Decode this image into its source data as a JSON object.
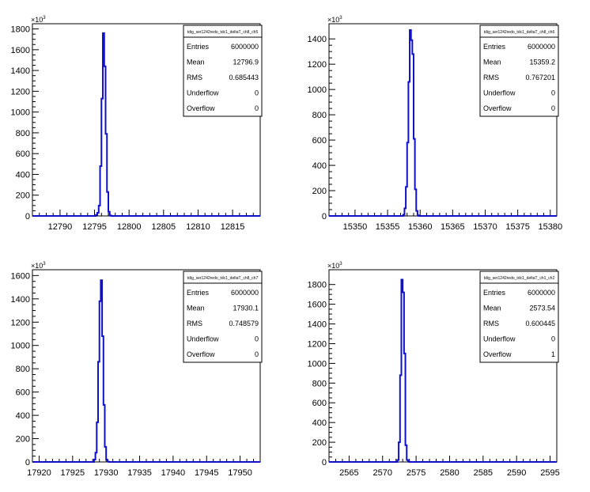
{
  "chart_data": [
    {
      "type": "histogram",
      "stats": {
        "title": "tdig_ser1242redo_tdc1_deltaT_ch8_ch5",
        "entries": "6000000",
        "mean": "12796.9",
        "rms": "0.685443",
        "underflow": "0",
        "overflow": "0"
      },
      "stat_labels": {
        "entries": "Entries",
        "mean": "Mean",
        "rms": "RMS",
        "underflow": "Underflow",
        "overflow": "Overflow"
      },
      "xlim": [
        12786,
        12819
      ],
      "xticks": [
        12790,
        12795,
        12800,
        12805,
        12810,
        12815
      ],
      "ylim": [
        0,
        1850
      ],
      "yticks": [
        0,
        200,
        400,
        600,
        800,
        1000,
        1200,
        1400,
        1600,
        1800
      ],
      "y_multiplier": {
        "base": "×10",
        "exp": "3"
      },
      "bin_width": 0.2,
      "bins": [
        {
          "x": 12795.2,
          "y": 10
        },
        {
          "x": 12795.4,
          "y": 30
        },
        {
          "x": 12795.6,
          "y": 100
        },
        {
          "x": 12795.8,
          "y": 480
        },
        {
          "x": 12796.0,
          "y": 1130
        },
        {
          "x": 12796.2,
          "y": 1760
        },
        {
          "x": 12796.4,
          "y": 1440
        },
        {
          "x": 12796.6,
          "y": 790
        },
        {
          "x": 12796.8,
          "y": 230
        },
        {
          "x": 12797.0,
          "y": 40
        },
        {
          "x": 12797.2,
          "y": 5
        }
      ]
    },
    {
      "type": "histogram",
      "stats": {
        "title": "tdig_ser1242redo_tdc1_deltaT_ch8_ch6",
        "entries": "6000000",
        "mean": "15359.2",
        "rms": "0.767201",
        "underflow": "0",
        "overflow": "0"
      },
      "stat_labels": {
        "entries": "Entries",
        "mean": "Mean",
        "rms": "RMS",
        "underflow": "Underflow",
        "overflow": "Overflow"
      },
      "xlim": [
        15346,
        15381
      ],
      "xticks": [
        15350,
        15355,
        15360,
        15365,
        15370,
        15375,
        15380
      ],
      "ylim": [
        0,
        1520
      ],
      "yticks": [
        0,
        200,
        400,
        600,
        800,
        1000,
        1200,
        1400
      ],
      "y_multiplier": {
        "base": "×10",
        "exp": "3"
      },
      "bin_width": 0.2,
      "bins": [
        {
          "x": 15357.4,
          "y": 10
        },
        {
          "x": 15357.6,
          "y": 60
        },
        {
          "x": 15357.8,
          "y": 230
        },
        {
          "x": 15358.0,
          "y": 580
        },
        {
          "x": 15358.2,
          "y": 1060
        },
        {
          "x": 15358.4,
          "y": 1470
        },
        {
          "x": 15358.6,
          "y": 1390
        },
        {
          "x": 15358.8,
          "y": 1280
        },
        {
          "x": 15359.0,
          "y": 610
        },
        {
          "x": 15359.2,
          "y": 210
        },
        {
          "x": 15359.4,
          "y": 40
        },
        {
          "x": 15359.6,
          "y": 5
        }
      ]
    },
    {
      "type": "histogram",
      "stats": {
        "title": "tdig_ser1242redo_tdc1_deltaT_ch8_ch7",
        "entries": "6000000",
        "mean": "17930.1",
        "rms": "0.748579",
        "underflow": "0",
        "overflow": "0"
      },
      "stat_labels": {
        "entries": "Entries",
        "mean": "Mean",
        "rms": "RMS",
        "underflow": "Underflow",
        "overflow": "Overflow"
      },
      "xlim": [
        17919,
        17953
      ],
      "xticks": [
        17920,
        17925,
        17930,
        17935,
        17940,
        17945,
        17950
      ],
      "ylim": [
        0,
        1650
      ],
      "yticks": [
        0,
        200,
        400,
        600,
        800,
        1000,
        1200,
        1400,
        1600
      ],
      "y_multiplier": {
        "base": "×10",
        "exp": "3"
      },
      "bin_width": 0.2,
      "bins": [
        {
          "x": 17928.2,
          "y": 20
        },
        {
          "x": 17928.4,
          "y": 80
        },
        {
          "x": 17928.6,
          "y": 340
        },
        {
          "x": 17928.8,
          "y": 860
        },
        {
          "x": 17929.0,
          "y": 1380
        },
        {
          "x": 17929.2,
          "y": 1560
        },
        {
          "x": 17929.4,
          "y": 1080
        },
        {
          "x": 17929.6,
          "y": 490
        },
        {
          "x": 17929.8,
          "y": 130
        },
        {
          "x": 17930.0,
          "y": 20
        },
        {
          "x": 17930.2,
          "y": 3
        }
      ]
    },
    {
      "type": "histogram",
      "stats": {
        "title": "tdig_ser1242redo_tdc1_deltaT_ch1_ch2",
        "entries": "6000000",
        "mean": "2573.54",
        "rms": "0.600445",
        "underflow": "0",
        "overflow": "1"
      },
      "stat_labels": {
        "entries": "Entries",
        "mean": "Mean",
        "rms": "RMS",
        "underflow": "Underflow",
        "overflow": "Overflow"
      },
      "xlim": [
        2562,
        2596
      ],
      "xticks": [
        2565,
        2570,
        2575,
        2580,
        2585,
        2590,
        2595
      ],
      "ylim": [
        0,
        1950
      ],
      "yticks": [
        0,
        200,
        400,
        600,
        800,
        1000,
        1200,
        1400,
        1600,
        1800
      ],
      "y_multiplier": {
        "base": "×10",
        "exp": "3"
      },
      "bin_width": 0.2,
      "bins": [
        {
          "x": 2572.2,
          "y": 20
        },
        {
          "x": 2572.4,
          "y": 200
        },
        {
          "x": 2572.6,
          "y": 880
        },
        {
          "x": 2572.8,
          "y": 1850
        },
        {
          "x": 2573.0,
          "y": 1720
        },
        {
          "x": 2573.2,
          "y": 1100
        },
        {
          "x": 2573.4,
          "y": 170
        },
        {
          "x": 2573.6,
          "y": 20
        },
        {
          "x": 2573.8,
          "y": 3
        }
      ]
    }
  ]
}
